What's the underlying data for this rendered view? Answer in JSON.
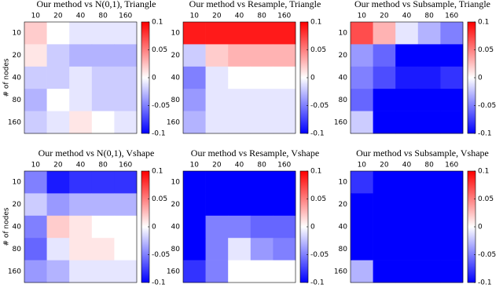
{
  "chart_data": [
    {
      "type": "heatmap",
      "title": "Our method vs N(0,1), Triangle",
      "ylabel": "# of nodes",
      "x_categories": [
        "10",
        "20",
        "40",
        "80",
        "160"
      ],
      "y_categories": [
        "10",
        "20",
        "40",
        "80",
        "160"
      ],
      "values": [
        [
          0.02,
          0,
          -0.01,
          -0.01,
          -0.01
        ],
        [
          0.01,
          -0.02,
          -0.03,
          -0.03,
          -0.03
        ],
        [
          -0.02,
          -0.02,
          -0.01,
          -0.02,
          -0.02
        ],
        [
          -0.03,
          0,
          -0.01,
          -0.02,
          -0.02
        ],
        [
          -0.02,
          -0.01,
          0.01,
          0,
          -0.01
        ]
      ],
      "zlim": [
        -0.1,
        0.1
      ],
      "zticks": [
        -0.1,
        -0.05,
        0,
        0.05,
        0.1
      ],
      "colormap": [
        "#0000ff",
        "#ffffff",
        "#ff0000"
      ]
    },
    {
      "type": "heatmap",
      "title": "Our method vs Resample, Triangle",
      "x_categories": [
        "10",
        "20",
        "40",
        "80",
        "160"
      ],
      "y_categories": [
        "10",
        "20",
        "40",
        "80",
        "160"
      ],
      "values": [
        [
          0.09,
          0.09,
          0.09,
          0.09,
          0.09
        ],
        [
          -0.02,
          0.02,
          0.03,
          0.03,
          0.03
        ],
        [
          -0.05,
          -0.01,
          0,
          0,
          0
        ],
        [
          -0.04,
          -0.01,
          -0.01,
          -0.01,
          -0.01
        ],
        [
          -0.03,
          -0.01,
          -0.01,
          -0.01,
          -0.01
        ]
      ],
      "zlim": [
        -0.1,
        0.1
      ],
      "zticks": [
        -0.1,
        -0.05,
        0,
        0.05,
        0.1
      ],
      "colormap": [
        "#0000ff",
        "#ffffff",
        "#ff0000"
      ]
    },
    {
      "type": "heatmap",
      "title": "Our method vs Subsample, Triangle",
      "x_categories": [
        "10",
        "20",
        "40",
        "80",
        "160"
      ],
      "y_categories": [
        "10",
        "20",
        "40",
        "80",
        "160"
      ],
      "values": [
        [
          0.07,
          0.03,
          -0.01,
          -0.03,
          -0.05
        ],
        [
          -0.04,
          -0.06,
          -0.1,
          -0.1,
          -0.1
        ],
        [
          -0.05,
          -0.07,
          -0.09,
          -0.09,
          -0.08
        ],
        [
          -0.06,
          -0.1,
          -0.1,
          -0.1,
          -0.1
        ],
        [
          -0.02,
          -0.1,
          -0.1,
          -0.1,
          -0.1
        ]
      ],
      "zlim": [
        -0.1,
        0.1
      ],
      "zticks": [
        -0.1,
        -0.05,
        0,
        0.05,
        0.1
      ],
      "colormap": [
        "#0000ff",
        "#ffffff",
        "#ff0000"
      ]
    },
    {
      "type": "heatmap",
      "title": "Our method vs N(0,1), Vshape",
      "ylabel": "# of nodes",
      "x_categories": [
        "10",
        "20",
        "40",
        "80",
        "160"
      ],
      "y_categories": [
        "10",
        "20",
        "40",
        "80",
        "160"
      ],
      "values": [
        [
          -0.05,
          -0.09,
          -0.08,
          -0.08,
          -0.08
        ],
        [
          -0.02,
          -0.04,
          -0.03,
          -0.03,
          -0.03
        ],
        [
          -0.05,
          0.02,
          0.01,
          0,
          0
        ],
        [
          -0.06,
          -0.01,
          0.01,
          0.01,
          0
        ],
        [
          -0.04,
          -0.03,
          -0.01,
          -0.01,
          -0.01
        ]
      ],
      "zlim": [
        -0.1,
        0.1
      ],
      "zticks": [
        -0.1,
        -0.05,
        0,
        0.05,
        0.1
      ],
      "colormap": [
        "#0000ff",
        "#ffffff",
        "#ff0000"
      ]
    },
    {
      "type": "heatmap",
      "title": "Our method vs Resample, Vshape",
      "x_categories": [
        "10",
        "20",
        "40",
        "80",
        "160"
      ],
      "y_categories": [
        "10",
        "20",
        "40",
        "80",
        "160"
      ],
      "values": [
        [
          -0.1,
          -0.1,
          -0.1,
          -0.1,
          -0.1
        ],
        [
          -0.1,
          -0.1,
          -0.1,
          -0.1,
          -0.1
        ],
        [
          -0.1,
          -0.05,
          -0.05,
          -0.06,
          -0.06
        ],
        [
          -0.1,
          -0.05,
          -0.01,
          -0.04,
          -0.05
        ],
        [
          -0.08,
          -0.05,
          0,
          0,
          0
        ]
      ],
      "zlim": [
        -0.1,
        0.1
      ],
      "zticks": [
        -0.1,
        -0.05,
        0,
        0.05,
        0.1
      ],
      "colormap": [
        "#0000ff",
        "#ffffff",
        "#ff0000"
      ]
    },
    {
      "type": "heatmap",
      "title": "Our method vs Subsample, Vshape",
      "x_categories": [
        "10",
        "20",
        "40",
        "80",
        "160"
      ],
      "y_categories": [
        "10",
        "20",
        "40",
        "80",
        "160"
      ],
      "values": [
        [
          -0.08,
          -0.1,
          -0.1,
          -0.1,
          -0.1
        ],
        [
          -0.1,
          -0.1,
          -0.1,
          -0.1,
          -0.1
        ],
        [
          -0.1,
          -0.1,
          -0.1,
          -0.1,
          -0.1
        ],
        [
          -0.1,
          -0.1,
          -0.1,
          -0.1,
          -0.1
        ],
        [
          -0.03,
          -0.1,
          -0.1,
          -0.1,
          -0.1
        ]
      ],
      "zlim": [
        -0.1,
        0.1
      ],
      "zticks": [
        -0.1,
        -0.05,
        0,
        0.05,
        0.1
      ],
      "colormap": [
        "#0000ff",
        "#ffffff",
        "#ff0000"
      ]
    }
  ]
}
